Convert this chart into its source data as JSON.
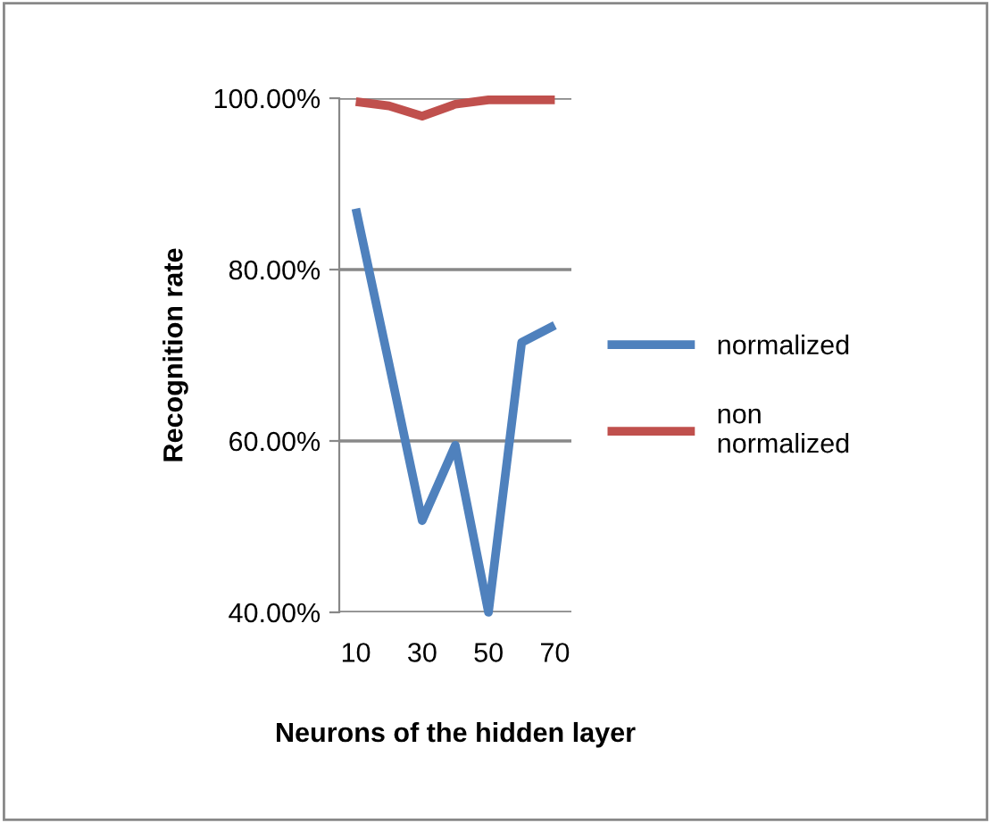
{
  "chart_data": {
    "type": "line",
    "xlabel": "Neurons of the hidden layer",
    "ylabel": "Recognition rate",
    "categories": [
      "10",
      null,
      "30",
      null,
      "50",
      null,
      "70"
    ],
    "series": [
      {
        "name": "normalized",
        "color": "#4f81bd",
        "values": [
          87.1,
          69,
          50.7,
          59.5,
          40,
          71.5,
          73.5
        ]
      },
      {
        "name": "non normalized",
        "color": "#c0504d",
        "values": [
          99.6,
          99.1,
          97.9,
          99.3,
          99.8,
          99.8,
          99.8
        ]
      }
    ],
    "ylim": [
      40,
      100
    ],
    "yticks": [
      {
        "value": 40,
        "label": "40.00%"
      },
      {
        "value": 60,
        "label": "60.00%"
      },
      {
        "value": 80,
        "label": "80.00%"
      },
      {
        "value": 100,
        "label": "100.00%"
      }
    ],
    "grid": "y",
    "legend": "right",
    "marker": "none",
    "line_style": "solid"
  }
}
